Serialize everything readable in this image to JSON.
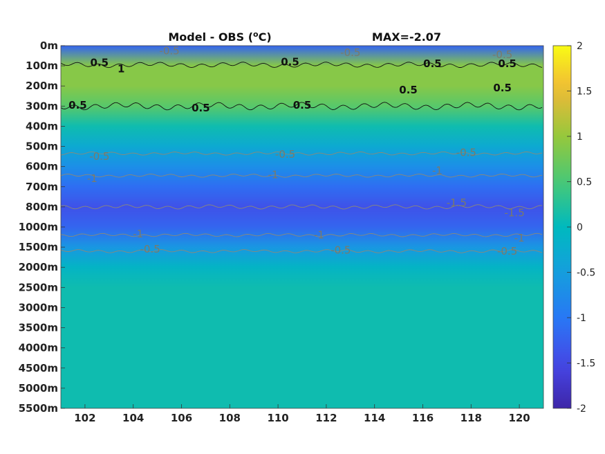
{
  "title": "Model - OBS (°C)",
  "title_main": "Model - OBS (",
  "title_unit_sup": "o",
  "title_unit_tail": "C)",
  "max_label": "MAX=-2.07",
  "chart_data": {
    "type": "heatmap",
    "title": "Model - OBS (°C)",
    "annotation": "MAX=-2.07",
    "x_ticks": [
      102,
      104,
      106,
      108,
      110,
      112,
      114,
      116,
      118,
      120
    ],
    "xlim": [
      101,
      121
    ],
    "y_tick_labels": [
      "0m",
      "100m",
      "200m",
      "300m",
      "400m",
      "500m",
      "600m",
      "700m",
      "800m",
      "1000m",
      "1500m",
      "2000m",
      "2500m",
      "3000m",
      "3500m",
      "4000m",
      "4500m",
      "5000m",
      "5500m"
    ],
    "colorbar": {
      "range": [
        -2,
        2
      ],
      "ticks": [
        2,
        1.5,
        1,
        0.5,
        0,
        -0.5,
        -1,
        -1.5,
        -2
      ],
      "colormap": "parula"
    },
    "depth_profile": {
      "levels": [
        "0m",
        "100m",
        "200m",
        "300m",
        "400m",
        "500m",
        "600m",
        "700m",
        "800m",
        "1000m",
        "1500m",
        "2000m",
        "2500m",
        "3000m",
        "3500m",
        "4000m",
        "4500m",
        "5000m",
        "5500m"
      ],
      "values": [
        -1.2,
        0.9,
        0.9,
        0.6,
        0.1,
        -0.3,
        -0.7,
        -1.1,
        -1.4,
        -1.2,
        -0.6,
        -0.1,
        0.1,
        0.1,
        0.1,
        0.1,
        0.1,
        0.1,
        0.1
      ]
    },
    "contour_labels": [
      {
        "text": "0.5",
        "x": 102.6,
        "level": 0.85,
        "style": "dark"
      },
      {
        "text": "1",
        "x": 103.5,
        "level": 1.15,
        "style": "dark"
      },
      {
        "text": "-0.5",
        "x": 105.5,
        "level": 0.25,
        "style": "grey"
      },
      {
        "text": "-0.5",
        "x": 113.0,
        "level": 0.35,
        "style": "grey"
      },
      {
        "text": "-0.5",
        "x": 119.3,
        "level": 0.45,
        "style": "grey"
      },
      {
        "text": "0.5",
        "x": 110.5,
        "level": 0.8,
        "style": "dark"
      },
      {
        "text": "0.5",
        "x": 116.4,
        "level": 0.9,
        "style": "dark"
      },
      {
        "text": "0.5",
        "x": 119.5,
        "level": 0.9,
        "style": "dark"
      },
      {
        "text": "0.5",
        "x": 101.7,
        "level": 2.95,
        "style": "dark"
      },
      {
        "text": "0.5",
        "x": 106.8,
        "level": 3.1,
        "style": "dark"
      },
      {
        "text": "0.5",
        "x": 111.0,
        "level": 2.95,
        "style": "dark"
      },
      {
        "text": "0.5",
        "x": 115.4,
        "level": 2.2,
        "style": "dark"
      },
      {
        "text": "0.5",
        "x": 119.3,
        "level": 2.1,
        "style": "dark"
      },
      {
        "text": "-0.5",
        "x": 102.6,
        "level": 5.5,
        "style": "grey"
      },
      {
        "text": "-0.5",
        "x": 110.3,
        "level": 5.4,
        "style": "grey"
      },
      {
        "text": "-0.5",
        "x": 117.8,
        "level": 5.3,
        "style": "grey"
      },
      {
        "text": "-1",
        "x": 102.3,
        "level": 6.6,
        "style": "grey"
      },
      {
        "text": "-1",
        "x": 109.8,
        "level": 6.4,
        "style": "grey"
      },
      {
        "text": "-1",
        "x": 116.6,
        "level": 6.2,
        "style": "grey"
      },
      {
        "text": "-1.5",
        "x": 117.4,
        "level": 7.8,
        "style": "grey"
      },
      {
        "text": "-1.5",
        "x": 119.8,
        "level": 8.3,
        "style": "grey"
      },
      {
        "text": "-1",
        "x": 104.2,
        "level": 9.35,
        "style": "grey"
      },
      {
        "text": "-1",
        "x": 111.7,
        "level": 9.4,
        "style": "grey"
      },
      {
        "text": "-1",
        "x": 120.0,
        "level": 9.55,
        "style": "grey"
      },
      {
        "text": "-0.5",
        "x": 104.7,
        "level": 10.1,
        "style": "grey"
      },
      {
        "text": "-0.5",
        "x": 112.6,
        "level": 10.15,
        "style": "grey"
      },
      {
        "text": "-0.5",
        "x": 119.5,
        "level": 10.2,
        "style": "grey"
      }
    ]
  }
}
